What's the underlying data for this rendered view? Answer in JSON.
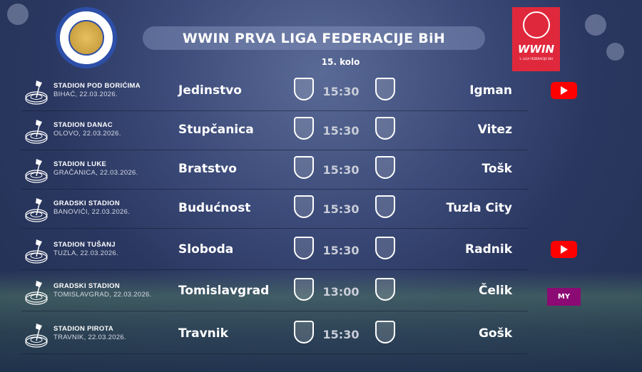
{
  "header": {
    "title": "WWIN PRVA LIGA FEDERACIJE BiH",
    "round": "15. kolo",
    "sponsor_logo": "WWIN",
    "sponsor_sub": "1. LIGA FEDERACIJE BIH"
  },
  "colors": {
    "youtube": "#ff0000",
    "mytv": "#8b0a73",
    "sponsor": "#e0283c"
  },
  "matches": [
    {
      "venue": "STADION POD BORIĆIMA",
      "city_date": "BIHAĆ, 22.03.2026.",
      "home": "Jedinstvo",
      "time": "15:30",
      "away": "Igman",
      "broadcast": "youtube"
    },
    {
      "venue": "STADION DANAC",
      "city_date": "OLOVO, 22.03.2026.",
      "home": "Stupčanica",
      "time": "15:30",
      "away": "Vitez",
      "broadcast": ""
    },
    {
      "venue": "STADION LUKE",
      "city_date": "GRAČANICA, 22.03.2026.",
      "home": "Bratstvo",
      "time": "15:30",
      "away": "Tošk",
      "broadcast": ""
    },
    {
      "venue": "GRADSKI STADION",
      "city_date": "BANOVIĆI, 22.03.2026.",
      "home": "Budućnost",
      "time": "15:30",
      "away": "Tuzla City",
      "broadcast": ""
    },
    {
      "venue": "STADION TUŠANJ",
      "city_date": "TUZLA, 22.03.2026.",
      "home": "Sloboda",
      "time": "15:30",
      "away": "Radnik",
      "broadcast": "youtube"
    },
    {
      "venue": "GRADSKI STADION",
      "city_date": "TOMISLAVGRAD, 22.03.2026.",
      "home": "Tomislavgrad",
      "time": "13:00",
      "away": "Čelik",
      "broadcast": "mytv"
    },
    {
      "venue": "STADION PIROTA",
      "city_date": "TRAVNIK, 22.03.2026.",
      "home": "Travnik",
      "time": "15:30",
      "away": "Gošk",
      "broadcast": ""
    }
  ],
  "mytv_label": "MY"
}
